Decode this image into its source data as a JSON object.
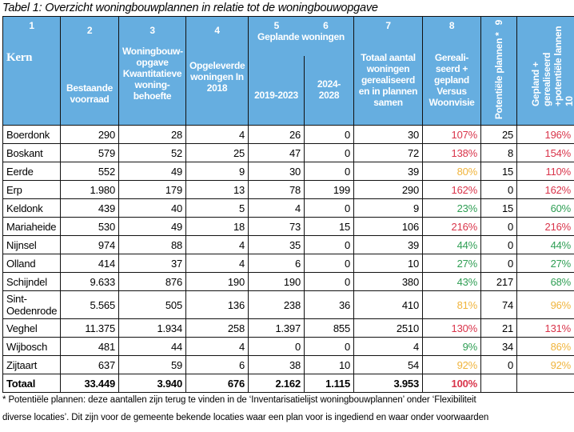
{
  "title": "Tabel 1: Overzicht woningbouwplannen in relatie tot de woningbouwopgave",
  "colors": {
    "header_bg": "#66aee0",
    "over_100": "#d9344a",
    "between_80_100": "#f0b43c",
    "below_80": "#2f9e54"
  },
  "header": {
    "c1": {
      "num": "1",
      "label": "Kern"
    },
    "c2": {
      "num": "2",
      "label": "Bestaande voorraad"
    },
    "c3": {
      "num": "3",
      "label": "Woningbouw-opgave Kwantitatieve woning-behoefte"
    },
    "c4": {
      "num": "4",
      "label": "Opgeleverde woningen In 2018"
    },
    "group": {
      "num5": "5",
      "num6": "6",
      "label": "Geplande woningen"
    },
    "c5": {
      "label": "2019-2023"
    },
    "c6": {
      "label": "2024-2028"
    },
    "c7": {
      "num": "7",
      "label": "Totaal aantal woningen gerealiseerd en in plannen samen"
    },
    "c8": {
      "num": "8",
      "label": "Gereali-seerd + gepland Versus Woonvisie"
    },
    "c9": {
      "num": "9",
      "label": "Potentiële plannen *"
    },
    "c10": {
      "num": "10",
      "label": "Gepland + gerealiseerd +potentiële lannen"
    }
  },
  "rows": [
    {
      "kern": "Boerdonk",
      "voorraad": "290",
      "opgave": "28",
      "opgeleverd": "4",
      "p2019": "26",
      "p2024": "0",
      "totaal": "30",
      "pct": "107%",
      "pct_color": "red",
      "potentieel": "25",
      "pct_total": "196%",
      "pct_total_color": "red"
    },
    {
      "kern": "Boskant",
      "voorraad": "579",
      "opgave": "52",
      "opgeleverd": "25",
      "p2019": "47",
      "p2024": "0",
      "totaal": "72",
      "pct": "138%",
      "pct_color": "red",
      "potentieel": "8",
      "pct_total": "154%",
      "pct_total_color": "red"
    },
    {
      "kern": "Eerde",
      "voorraad": "552",
      "opgave": "49",
      "opgeleverd": "9",
      "p2019": "30",
      "p2024": "0",
      "totaal": "39",
      "pct": "80%",
      "pct_color": "orange",
      "potentieel": "15",
      "pct_total": "110%",
      "pct_total_color": "red"
    },
    {
      "kern": "Erp",
      "voorraad": "1.980",
      "opgave": "179",
      "opgeleverd": "13",
      "p2019": "78",
      "p2024": "199",
      "totaal": "290",
      "pct": "162%",
      "pct_color": "red",
      "potentieel": "0",
      "pct_total": "162%",
      "pct_total_color": "red"
    },
    {
      "kern": "Keldonk",
      "voorraad": "439",
      "opgave": "40",
      "opgeleverd": "5",
      "p2019": "4",
      "p2024": "0",
      "totaal": "9",
      "pct": "23%",
      "pct_color": "green",
      "potentieel": "15",
      "pct_total": "60%",
      "pct_total_color": "green"
    },
    {
      "kern": "Mariaheide",
      "voorraad": "530",
      "opgave": "49",
      "opgeleverd": "18",
      "p2019": "73",
      "p2024": "15",
      "totaal": "106",
      "pct": "216%",
      "pct_color": "red",
      "potentieel": "0",
      "pct_total": "216%",
      "pct_total_color": "red"
    },
    {
      "kern": "Nijnsel",
      "voorraad": "974",
      "opgave": "88",
      "opgeleverd": "4",
      "p2019": "35",
      "p2024": "0",
      "totaal": "39",
      "pct": "44%",
      "pct_color": "green",
      "potentieel": "0",
      "pct_total": "44%",
      "pct_total_color": "green"
    },
    {
      "kern": "Olland",
      "voorraad": "414",
      "opgave": "37",
      "opgeleverd": "4",
      "p2019": "6",
      "p2024": "0",
      "totaal": "10",
      "pct": "27%",
      "pct_color": "green",
      "potentieel": "0",
      "pct_total": "27%",
      "pct_total_color": "green"
    },
    {
      "kern": "Schijndel",
      "voorraad": "9.633",
      "opgave": "876",
      "opgeleverd": "190",
      "p2019": "190",
      "p2024": "0",
      "totaal": "380",
      "pct": "43%",
      "pct_color": "green",
      "potentieel": "217",
      "pct_total": "68%",
      "pct_total_color": "green"
    },
    {
      "kern": "Sint-Oedenrode",
      "voorraad": "5.565",
      "opgave": "505",
      "opgeleverd": "136",
      "p2019": "238",
      "p2024": "36",
      "totaal": "410",
      "pct": "81%",
      "pct_color": "orange",
      "potentieel": "74",
      "pct_total": "96%",
      "pct_total_color": "orange",
      "tall": true
    },
    {
      "kern": "Veghel",
      "voorraad": "11.375",
      "opgave": "1.934",
      "opgeleverd": "258",
      "p2019": "1.397",
      "p2024": "855",
      "totaal": "2510",
      "pct": "130%",
      "pct_color": "red",
      "potentieel": "21",
      "pct_total": "131%",
      "pct_total_color": "red"
    },
    {
      "kern": "Wijbosch",
      "voorraad": "481",
      "opgave": "44",
      "opgeleverd": "4",
      "p2019": "0",
      "p2024": "0",
      "totaal": "4",
      "pct": "9%",
      "pct_color": "green",
      "potentieel": "34",
      "pct_total": "86%",
      "pct_total_color": "orange"
    },
    {
      "kern": "Zijtaart",
      "voorraad": "637",
      "opgave": "59",
      "opgeleverd": "6",
      "p2019": "38",
      "p2024": "10",
      "totaal": "54",
      "pct": "92%",
      "pct_color": "orange",
      "potentieel": "0",
      "pct_total": "92%",
      "pct_total_color": "orange"
    }
  ],
  "total": {
    "kern": "Totaal",
    "voorraad": "33.449",
    "opgave": "3.940",
    "opgeleverd": "676",
    "p2019": "2.162",
    "p2024": "1.115",
    "totaal": "3.953",
    "pct": "100%",
    "pct_color": "red",
    "potentieel": "",
    "pct_total": "",
    "pct_total_color": ""
  },
  "footnote": {
    "line1": "* Potentiële plannen: deze aantallen zijn terug te vinden in de ‘Inventarisatielijst woningbouwplannen’ onder ‘Flexibiliteit",
    "line2": "diverse locaties’. Dit zijn voor de gemeente bekende locaties waar een plan voor is ingediend en waar onder voorwaarden"
  }
}
